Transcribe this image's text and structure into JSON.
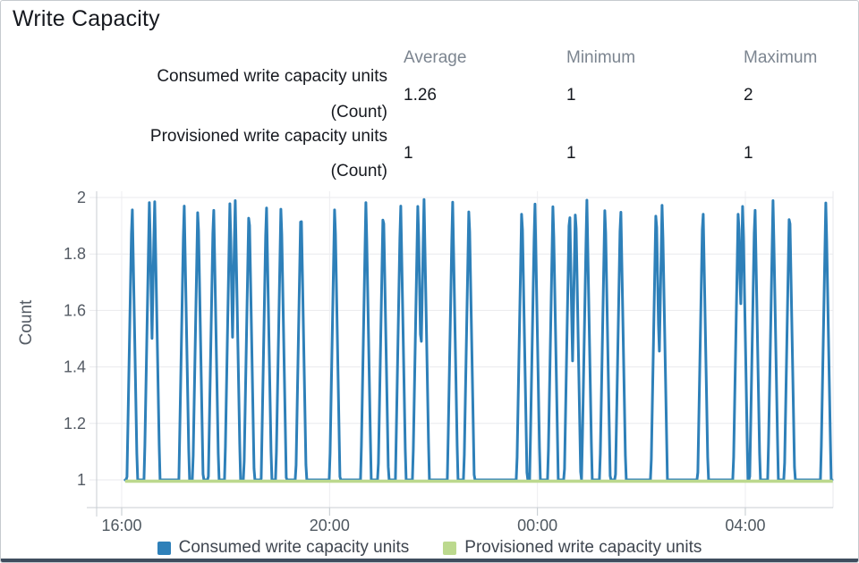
{
  "panel": {
    "title": "Write Capacity"
  },
  "stats": {
    "columns": [
      "Average",
      "Minimum",
      "Maximum"
    ],
    "rows": [
      {
        "label": "Consumed write capacity units",
        "unit": "(Count)",
        "average": "1.26",
        "minimum": "1",
        "maximum": "2"
      },
      {
        "label": "Provisioned write capacity units",
        "unit": "(Count)",
        "average": "1",
        "minimum": "1",
        "maximum": "1"
      }
    ]
  },
  "colors": {
    "consumed": "#2e80b9",
    "provisioned": "#bcd98e",
    "axis_text": "#545b64",
    "gridline": "#e9eaed",
    "axis_line": "#c9ced3",
    "bottom_divider": "#3f4d5e"
  },
  "chart_data": {
    "type": "line",
    "title": "Write Capacity",
    "xlabel": "",
    "ylabel": "Count",
    "y_ticks": [
      1,
      1.2,
      1.4,
      1.6,
      1.8,
      2
    ],
    "ylim": [
      0.9,
      2.02
    ],
    "x_ticks": [
      "16:00",
      "20:00",
      "00:00",
      "04:00"
    ],
    "x_start": "16:04",
    "x_end": "05:41",
    "grid": true,
    "legend_position": "bottom",
    "series": [
      {
        "name": "Consumed write capacity units",
        "color": "#2e80b9",
        "type": "spike-line",
        "baseline": 1,
        "peak": 2,
        "spike_halfwidth_minutes": 6,
        "spike_times": [
          "16:12",
          "16:32",
          "16:38",
          "17:12",
          "17:28",
          "17:46",
          "18:05",
          "18:11",
          "18:27",
          "18:47",
          "19:04",
          "19:27",
          "20:06",
          "20:42",
          "21:02",
          "21:22",
          "21:42",
          "21:49",
          "22:22",
          "22:41",
          "23:42",
          "23:57",
          "00:18",
          "00:37",
          "00:44",
          "00:57",
          "01:18",
          "01:36",
          "02:17",
          "02:24",
          "03:11",
          "03:52",
          "03:57",
          "04:11",
          "04:32",
          "04:51",
          "05:33"
        ],
        "stats": {
          "average": 1.26,
          "minimum": 1,
          "maximum": 2
        }
      },
      {
        "name": "Provisioned write capacity units",
        "color": "#bcd98e",
        "type": "constant-line",
        "constant_value": 1,
        "stats": {
          "average": 1,
          "minimum": 1,
          "maximum": 1
        }
      }
    ]
  }
}
